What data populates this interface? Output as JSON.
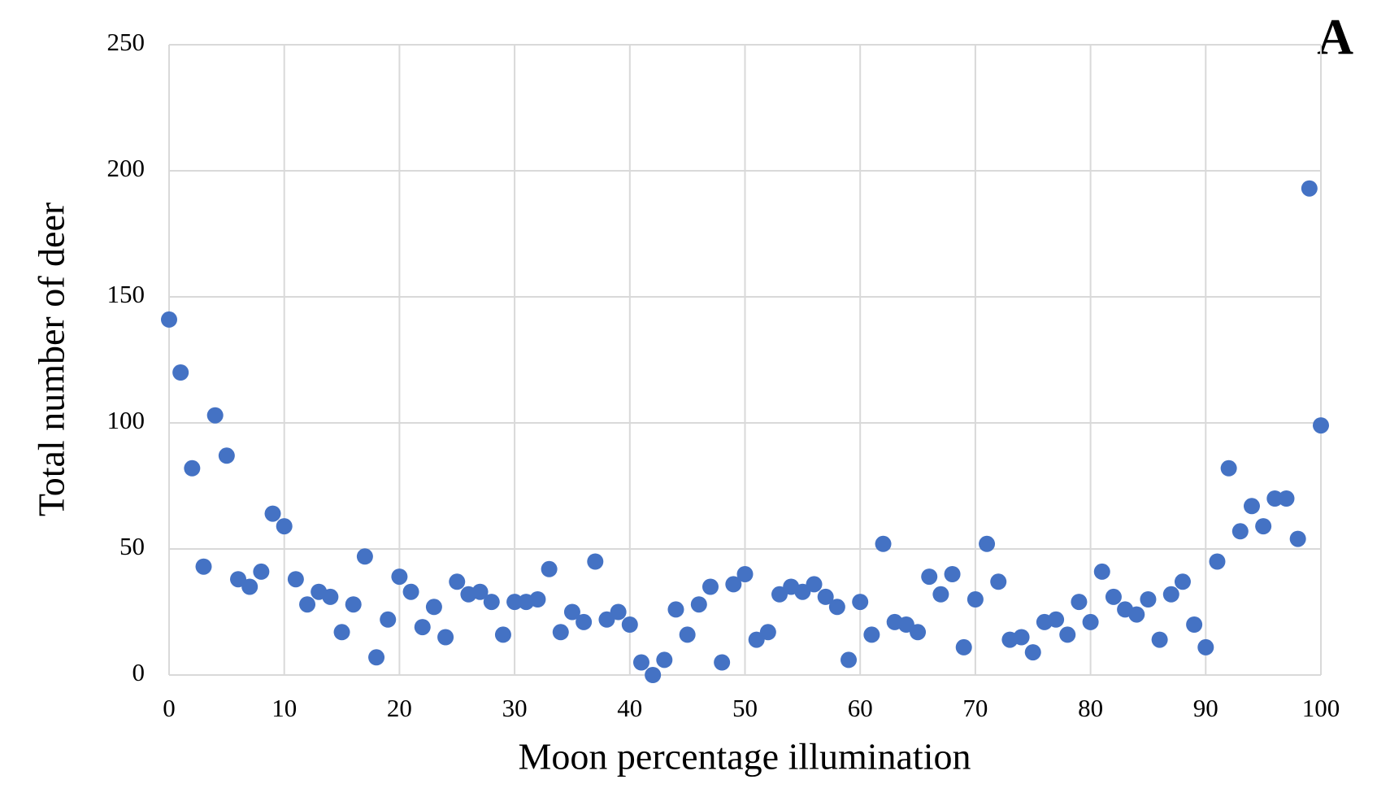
{
  "chart_data": {
    "type": "scatter",
    "annotation": "A",
    "xlabel": "Moon percentage illumination",
    "ylabel": "Total number of deer",
    "x": [
      0,
      1,
      2,
      3,
      4,
      5,
      6,
      7,
      8,
      9,
      10,
      11,
      12,
      13,
      14,
      15,
      16,
      17,
      18,
      19,
      20,
      21,
      22,
      23,
      24,
      25,
      26,
      27,
      28,
      29,
      30,
      31,
      32,
      33,
      34,
      35,
      36,
      37,
      38,
      39,
      40,
      41,
      42,
      43,
      44,
      45,
      46,
      47,
      48,
      49,
      50,
      51,
      52,
      53,
      54,
      55,
      56,
      57,
      58,
      59,
      60,
      61,
      62,
      63,
      64,
      65,
      66,
      67,
      68,
      69,
      70,
      71,
      72,
      73,
      74,
      75,
      76,
      77,
      78,
      79,
      80,
      81,
      82,
      83,
      84,
      85,
      86,
      87,
      88,
      89,
      90,
      91,
      92,
      93,
      94,
      95,
      96,
      97,
      98,
      99,
      100
    ],
    "values": [
      141,
      120,
      82,
      43,
      103,
      87,
      38,
      35,
      41,
      64,
      59,
      38,
      28,
      33,
      31,
      17,
      28,
      47,
      7,
      22,
      39,
      33,
      19,
      27,
      15,
      37,
      32,
      33,
      29,
      16,
      29,
      29,
      30,
      42,
      17,
      25,
      21,
      45,
      22,
      25,
      20,
      5,
      0,
      6,
      26,
      16,
      28,
      35,
      5,
      36,
      40,
      14,
      17,
      32,
      35,
      33,
      36,
      31,
      27,
      6,
      29,
      16,
      52,
      21,
      20,
      17,
      39,
      32,
      40,
      11,
      30,
      52,
      37,
      14,
      15,
      9,
      21,
      22,
      16,
      29,
      21,
      41,
      31,
      26,
      24,
      30,
      14,
      32,
      37,
      20,
      11,
      45,
      82,
      57,
      67,
      59,
      70,
      70,
      54,
      193,
      99
    ],
    "color": "#4472c4",
    "xlim": [
      0,
      100
    ],
    "xticks": [
      0,
      10,
      20,
      30,
      40,
      50,
      60,
      70,
      80,
      90,
      100
    ],
    "ylim": [
      0,
      250
    ],
    "yticks": [
      0,
      50,
      100,
      150,
      200,
      250
    ],
    "grid": true
  }
}
